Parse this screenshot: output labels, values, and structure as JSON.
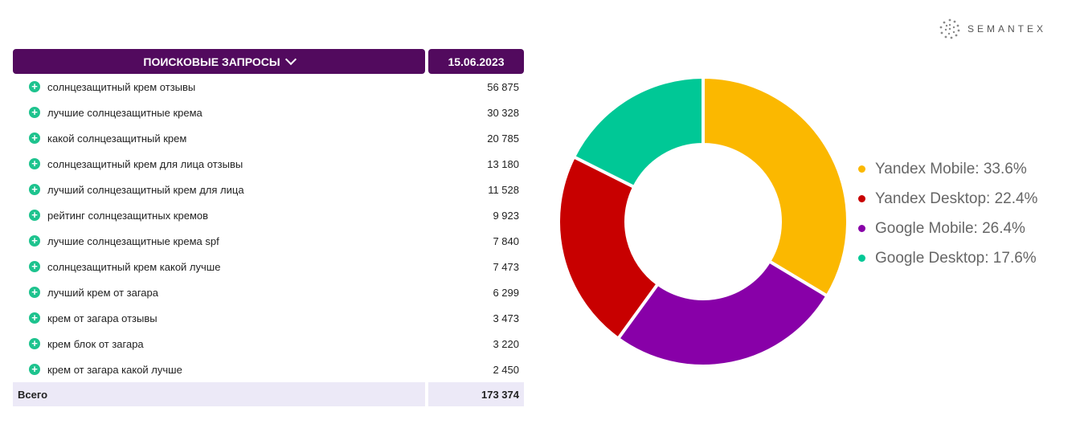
{
  "brand": {
    "name": "SEMANTEX"
  },
  "table": {
    "header_query": "ПОИСКОВЫЕ ЗАПРОСЫ",
    "header_date": "15.06.2023",
    "rows": [
      {
        "query": "солнцезащитный крем отзывы",
        "value": "56 875"
      },
      {
        "query": "лучшие солнцезащитные крема",
        "value": "30 328"
      },
      {
        "query": "какой солнцезащитный крем",
        "value": "20 785"
      },
      {
        "query": "солнцезащитный крем для лица отзывы",
        "value": "13 180"
      },
      {
        "query": "лучший солнцезащитный крем для лица",
        "value": "11 528"
      },
      {
        "query": "рейтинг солнцезащитных кремов",
        "value": "9 923"
      },
      {
        "query": "лучшие солнцезащитные крема spf",
        "value": "7 840"
      },
      {
        "query": "солнцезащитный крем какой лучше",
        "value": "7 473"
      },
      {
        "query": "лучший крем от загара",
        "value": "6 299"
      },
      {
        "query": "крем от загара отзывы",
        "value": "3 473"
      },
      {
        "query": "крем блок от загара",
        "value": "3 220"
      },
      {
        "query": "крем от загара какой лучше",
        "value": "2 450"
      }
    ],
    "total_label": "Всего",
    "total_value": "173 374"
  },
  "chart_data": {
    "type": "pie",
    "donut": true,
    "legend_position": "right",
    "slices": [
      {
        "label": "Yandex Mobile: 33.6%",
        "value": 33.6,
        "color": "#fbb800"
      },
      {
        "label": "Google Mobile: 26.4%",
        "value": 26.4,
        "color": "#8800a8"
      },
      {
        "label": "Yandex Desktop: 22.4%",
        "value": 22.4,
        "color": "#c80000"
      },
      {
        "label": "Google Desktop: 17.6%",
        "value": 17.6,
        "color": "#00c896"
      }
    ],
    "legend_order": [
      "Yandex Mobile: 33.6%",
      "Yandex Desktop: 22.4%",
      "Google Mobile: 26.4%",
      "Google Desktop: 17.6%"
    ]
  }
}
